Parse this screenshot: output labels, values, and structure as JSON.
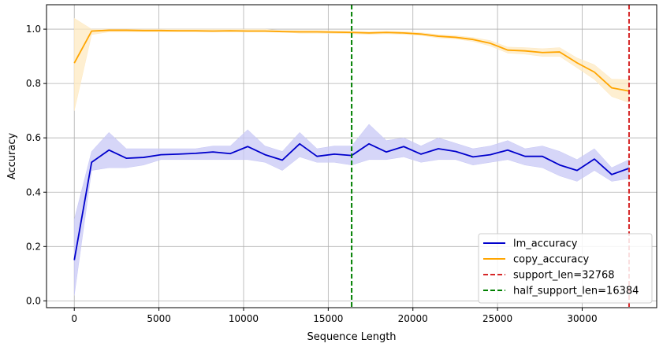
{
  "chart_data": {
    "type": "line",
    "xlabel": "Sequence Length",
    "ylabel": "Accuracy",
    "xlim": [
      -1640,
      34400
    ],
    "ylim": [
      -0.025,
      1.09
    ],
    "xticks": [
      0,
      5000,
      10000,
      15000,
      20000,
      25000,
      30000
    ],
    "xtick_labels": [
      "0",
      "5000",
      "10000",
      "15000",
      "20000",
      "25000",
      "30000"
    ],
    "yticks": [
      0.0,
      0.2,
      0.4,
      0.6,
      0.8,
      1.0
    ],
    "ytick_labels": [
      "0.0",
      "0.2",
      "0.4",
      "0.6",
      "0.8",
      "1.0"
    ],
    "grid": true,
    "legend_position": "bottom-right",
    "x": [
      0,
      1024,
      2048,
      3072,
      4096,
      5120,
      6144,
      7168,
      8192,
      9216,
      10240,
      11264,
      12288,
      13312,
      14336,
      15360,
      16384,
      17408,
      18432,
      19456,
      20480,
      21504,
      22528,
      23552,
      24576,
      25600,
      26624,
      27648,
      28672,
      29696,
      30720,
      31744,
      32768
    ],
    "series": [
      {
        "name": "lm_accuracy",
        "color": "#0000cc",
        "band_color": "#c8c8f5",
        "values": [
          0.15,
          0.51,
          0.555,
          0.525,
          0.528,
          0.538,
          0.54,
          0.543,
          0.548,
          0.542,
          0.568,
          0.538,
          0.518,
          0.578,
          0.532,
          0.54,
          0.535,
          0.578,
          0.548,
          0.568,
          0.54,
          0.56,
          0.55,
          0.53,
          0.538,
          0.555,
          0.532,
          0.532,
          0.5,
          0.48,
          0.522,
          0.465,
          0.488
        ],
        "lower": [
          0.02,
          0.48,
          0.49,
          0.49,
          0.5,
          0.52,
          0.52,
          0.52,
          0.52,
          0.52,
          0.52,
          0.51,
          0.48,
          0.53,
          0.51,
          0.51,
          0.5,
          0.52,
          0.52,
          0.53,
          0.51,
          0.52,
          0.52,
          0.5,
          0.51,
          0.52,
          0.5,
          0.49,
          0.46,
          0.44,
          0.48,
          0.44,
          0.45
        ],
        "upper": [
          0.3,
          0.55,
          0.62,
          0.56,
          0.56,
          0.56,
          0.56,
          0.56,
          0.57,
          0.57,
          0.63,
          0.57,
          0.55,
          0.62,
          0.56,
          0.57,
          0.57,
          0.65,
          0.59,
          0.6,
          0.57,
          0.6,
          0.58,
          0.56,
          0.57,
          0.59,
          0.56,
          0.57,
          0.55,
          0.52,
          0.56,
          0.49,
          0.52
        ]
      },
      {
        "name": "copy_accuracy",
        "color": "#ffa500",
        "band_color": "#fde9c2",
        "values": [
          0.875,
          0.993,
          0.996,
          0.996,
          0.995,
          0.995,
          0.994,
          0.994,
          0.993,
          0.994,
          0.993,
          0.993,
          0.991,
          0.99,
          0.99,
          0.989,
          0.988,
          0.986,
          0.988,
          0.986,
          0.982,
          0.974,
          0.97,
          0.962,
          0.948,
          0.923,
          0.92,
          0.914,
          0.916,
          0.876,
          0.842,
          0.784,
          0.772
        ],
        "lower": [
          0.7,
          0.98,
          0.99,
          0.99,
          0.99,
          0.99,
          0.99,
          0.99,
          0.99,
          0.99,
          0.99,
          0.99,
          0.99,
          0.985,
          0.985,
          0.984,
          0.983,
          0.981,
          0.983,
          0.981,
          0.977,
          0.968,
          0.964,
          0.955,
          0.938,
          0.912,
          0.908,
          0.9,
          0.9,
          0.858,
          0.815,
          0.752,
          0.73
        ],
        "upper": [
          1.04,
          1.0,
          1.0,
          1.0,
          1.0,
          1.0,
          1.0,
          1.0,
          1.0,
          1.0,
          1.0,
          1.0,
          0.995,
          0.995,
          0.995,
          0.994,
          0.993,
          0.991,
          0.993,
          0.991,
          0.987,
          0.98,
          0.976,
          0.969,
          0.958,
          0.934,
          0.932,
          0.928,
          0.932,
          0.894,
          0.869,
          0.816,
          0.814
        ]
      }
    ],
    "vlines": [
      {
        "name": "support_len=32768",
        "x": 32768,
        "color": "#d62728"
      },
      {
        "name": "half_support_len=16384",
        "x": 16384,
        "color": "#008000"
      }
    ]
  }
}
